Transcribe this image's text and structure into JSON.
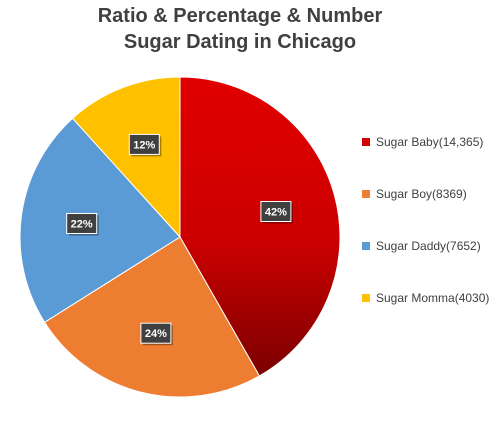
{
  "chart_data": {
    "type": "pie",
    "title_lines": [
      "Ratio & Percentage & Number",
      "Sugar Dating in Chicago"
    ],
    "slices": [
      {
        "label": "Sugar Baby(14,365)",
        "value": 14365,
        "percent_label": "42%",
        "color": "#d40000",
        "dark_color": "#8a0000"
      },
      {
        "label": "Sugar Boy(8369)",
        "value": 8369,
        "percent_label": "24%",
        "color": "#ed7d31"
      },
      {
        "label": "Sugar Daddy(7652)",
        "value": 7652,
        "percent_label": "22%",
        "color": "#5b9bd5"
      },
      {
        "label": "Sugar Momma(4030)",
        "value": 4030,
        "percent_label": "12%",
        "color": "#ffc000"
      }
    ],
    "legend_position": "right"
  }
}
